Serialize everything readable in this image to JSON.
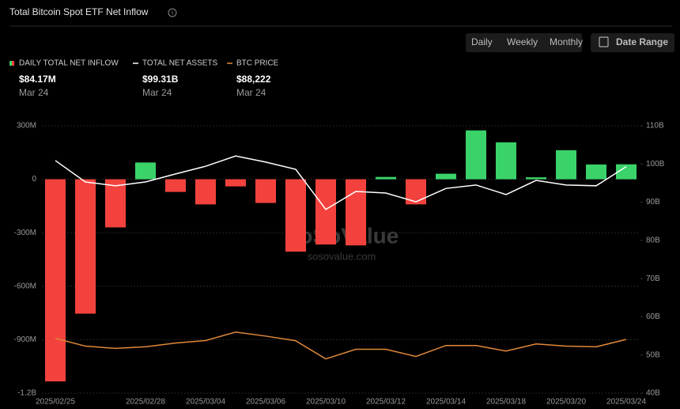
{
  "header": {
    "title": "Total Bitcoin Spot ETF Net Inflow",
    "periods": [
      "Daily",
      "Weekly",
      "Monthly"
    ],
    "active_period": 0,
    "date_range": "Date Range"
  },
  "watermark": {
    "brand": "SoSoValue",
    "url": "sosovalue.com"
  },
  "chart_data": {
    "type": "bar",
    "categories": [
      "2025/02/25",
      null,
      null,
      "2025/02/28",
      null,
      "2025/03/04",
      null,
      "2025/03/06",
      null,
      "2025/03/10",
      null,
      "2025/03/12",
      null,
      "2025/03/14",
      null,
      "2025/03/18",
      null,
      "2025/03/20",
      null,
      "2025/03/24"
    ],
    "series": [
      {
        "name": "DAILY TOTAL NET INFLOW",
        "type": "bar",
        "color": "#3ad36a",
        "negative_color": "#f3423d",
        "latest": "$84.17M",
        "latest_date": "Mar 24",
        "values": [
          -1134,
          -754,
          -270,
          94,
          -71,
          -141,
          -40,
          -133,
          -406,
          -366,
          -371,
          13,
          -141,
          31,
          274,
          207,
          11,
          163,
          83,
          84
        ]
      },
      {
        "name": "TOTAL NET ASSETS",
        "type": "line",
        "color": "#ffffff",
        "axis": "y2",
        "latest": "$99.31B",
        "latest_date": "Mar 24",
        "values": [
          100.9,
          95.3,
          94.3,
          95.3,
          97.4,
          99.4,
          102.1,
          100.5,
          98.6,
          88.1,
          92.8,
          92.4,
          90.1,
          93.6,
          94.5,
          92.0,
          95.7,
          94.5,
          94.3,
          99.31
        ]
      },
      {
        "name": "BTC PRICE",
        "type": "line",
        "color": "#e0893a",
        "axis": "y3",
        "latest": "$88,222",
        "latest_date": "Mar 24",
        "values": [
          88700,
          85200,
          84200,
          84900,
          86600,
          87700,
          91500,
          89700,
          87600,
          79500,
          83800,
          83800,
          80600,
          85500,
          85500,
          83000,
          86200,
          85200,
          84900,
          88222
        ]
      }
    ],
    "ylim": [
      -1200,
      300
    ],
    "yticks": [
      {
        "value": 300,
        "label": "300M"
      },
      0,
      {
        "value": -300,
        "label": "-300M"
      },
      {
        "value": -600,
        "label": "-600M"
      },
      {
        "value": -900,
        "label": "-900M"
      },
      {
        "value": -1200,
        "label": "-1.2B"
      }
    ],
    "y2lim": [
      40,
      110
    ],
    "y2ticks": [
      {
        "value": 110,
        "label": "110B"
      },
      {
        "value": 100,
        "label": "100B"
      },
      {
        "value": 90,
        "label": "90B"
      },
      {
        "value": 80,
        "label": "80B"
      },
      {
        "value": 70,
        "label": "70B"
      },
      {
        "value": 60,
        "label": "60B"
      },
      {
        "value": 50,
        "label": "50B"
      },
      {
        "value": 40,
        "label": "40B"
      }
    ],
    "y3lim": [
      64200,
      183600
    ],
    "grid": true
  }
}
